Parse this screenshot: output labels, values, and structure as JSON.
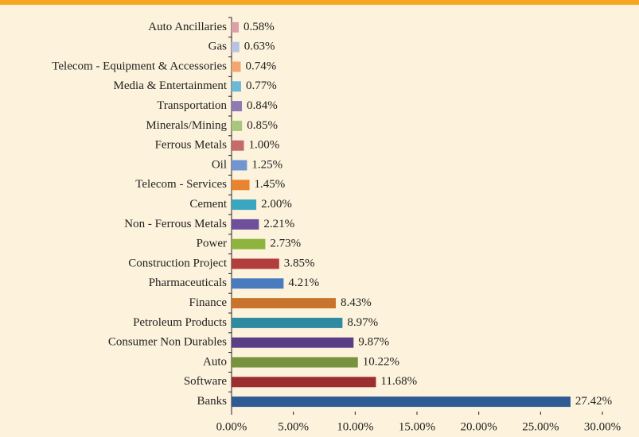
{
  "chart_data": {
    "type": "barh",
    "categories": [
      "Auto Ancillaries",
      "Gas",
      "Telecom - Equipment & Accessories",
      "Media & Entertainment",
      "Transportation",
      "Minerals/Mining",
      "Ferrous Metals",
      "Oil",
      "Telecom - Services",
      "Cement",
      "Non - Ferrous Metals",
      "Power",
      "Construction Project",
      "Pharmaceuticals",
      "Finance",
      "Petroleum Products",
      "Consumer Non Durables",
      "Auto",
      "Software",
      "Banks"
    ],
    "values": [
      0.58,
      0.63,
      0.74,
      0.77,
      0.84,
      0.85,
      1.0,
      1.25,
      1.45,
      2.0,
      2.21,
      2.73,
      3.85,
      4.21,
      8.43,
      8.97,
      9.87,
      10.22,
      11.68,
      27.42
    ],
    "value_labels": [
      "0.58%",
      "0.63%",
      "0.74%",
      "0.77%",
      "0.84%",
      "0.85%",
      "1.00%",
      "1.25%",
      "1.45%",
      "2.00%",
      "2.21%",
      "2.73%",
      "3.85%",
      "4.21%",
      "8.43%",
      "8.97%",
      "9.87%",
      "10.22%",
      "11.68%",
      "27.42%"
    ],
    "colors": [
      "#dba0a6",
      "#b7c3e0",
      "#f4a671",
      "#6cb8d6",
      "#8e7bb3",
      "#a9c77c",
      "#c46c6c",
      "#7095d0",
      "#e8832f",
      "#3ba6bf",
      "#6e4f9b",
      "#8db43f",
      "#b13d3d",
      "#4a7bbf",
      "#c8742d",
      "#2f8ba1",
      "#5b3f86",
      "#77933d",
      "#9b2e2e",
      "#2f5b95"
    ],
    "xlim": [
      0,
      30
    ],
    "xticks": [
      {
        "value": 0,
        "label": "0.00%"
      },
      {
        "value": 5,
        "label": "5.00%"
      },
      {
        "value": 10,
        "label": "10.00%"
      },
      {
        "value": 15,
        "label": "15.00%"
      },
      {
        "value": 20,
        "label": "20.00%"
      },
      {
        "value": 25,
        "label": "25.00%"
      },
      {
        "value": 30,
        "label": "30.00%"
      }
    ]
  }
}
